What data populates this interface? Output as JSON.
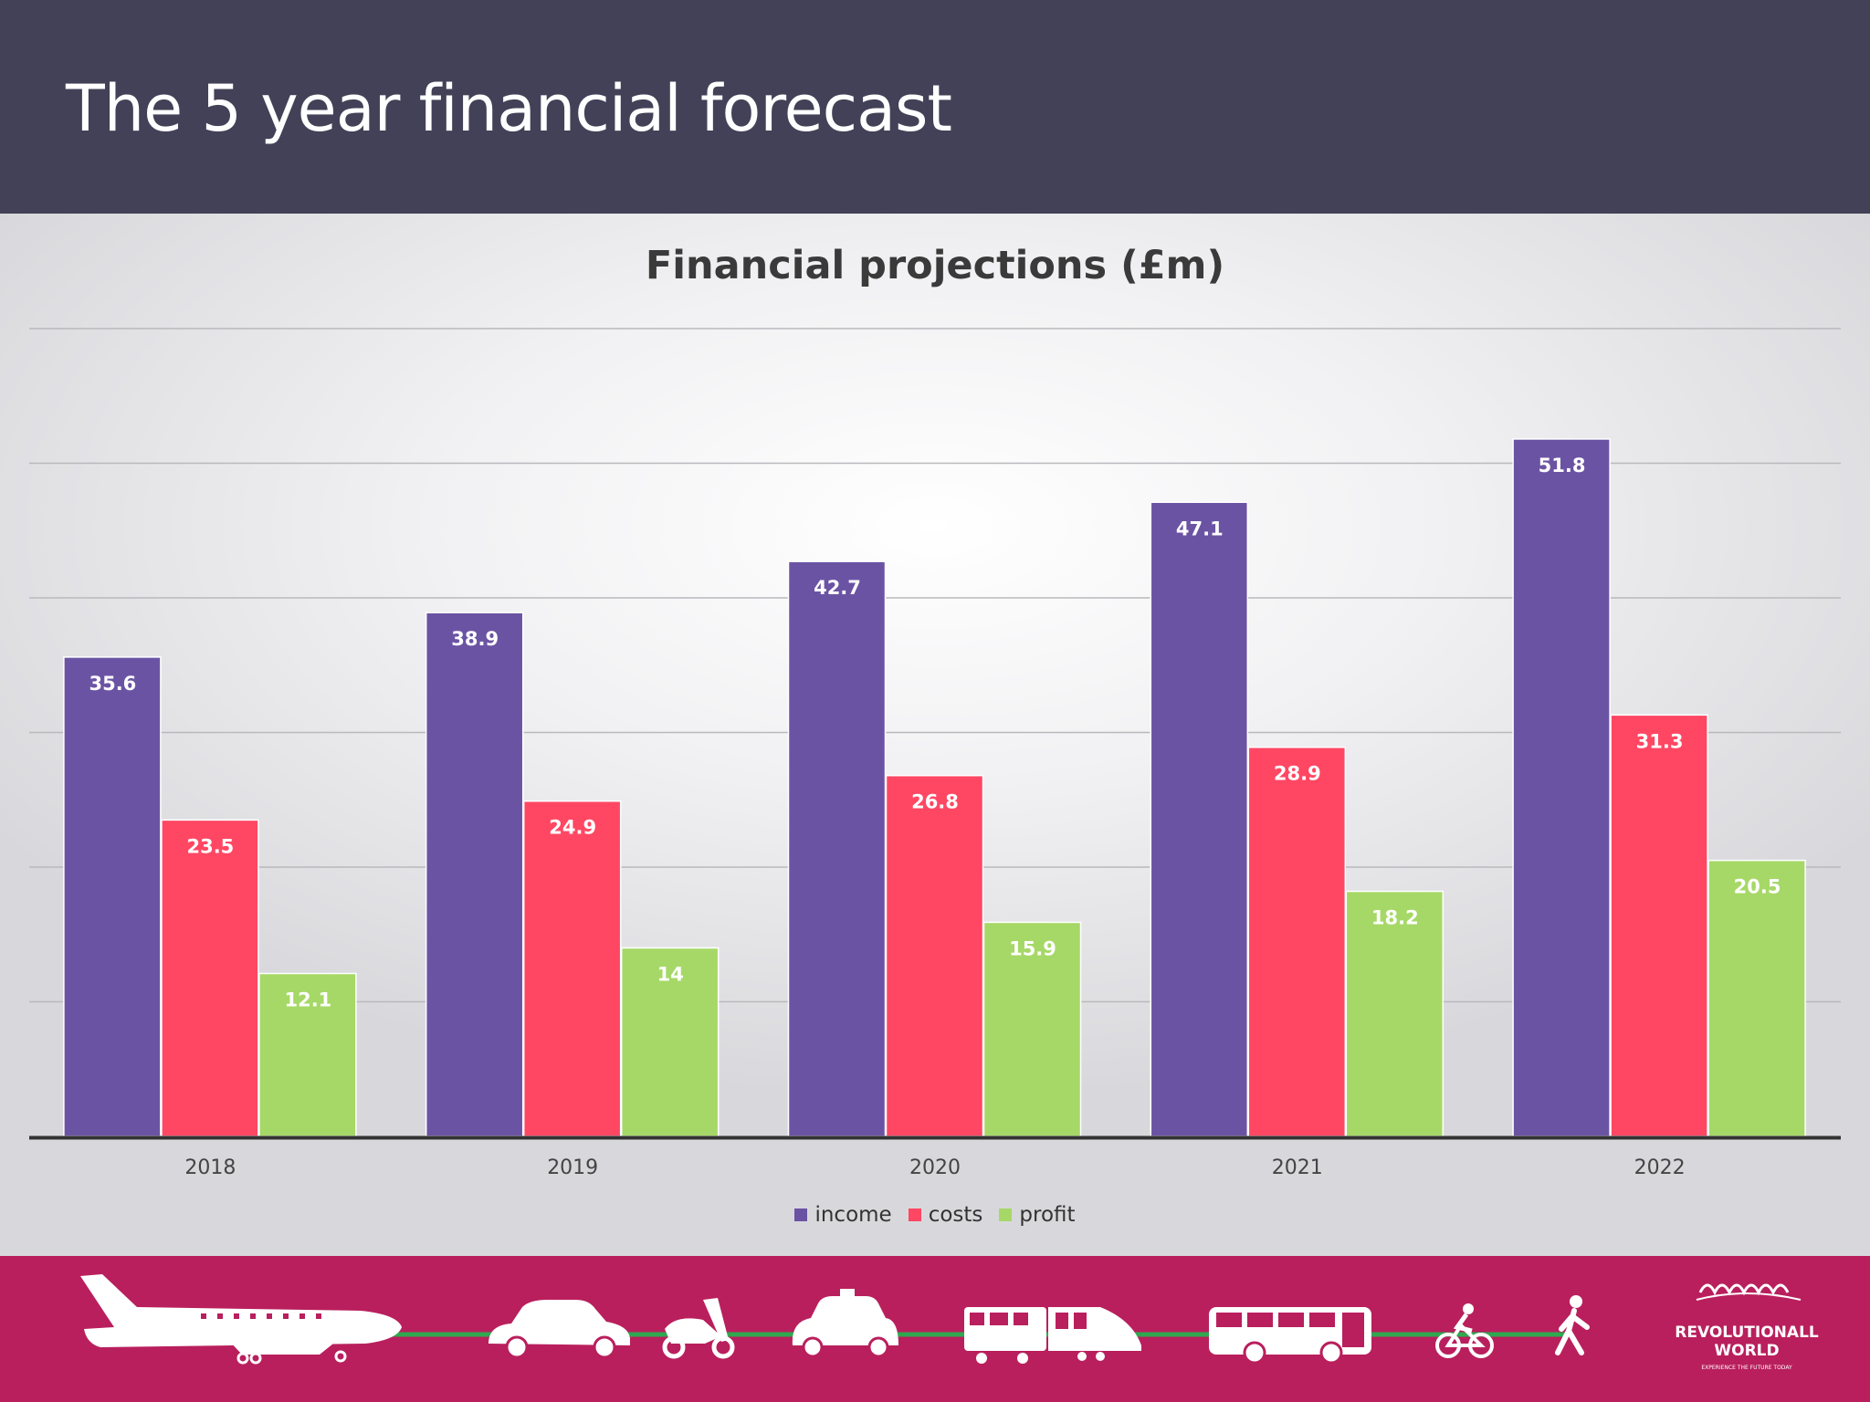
{
  "slide": {
    "title": "The 5 year financial forecast"
  },
  "chart_data": {
    "type": "bar",
    "title": "Financial projections (£m)",
    "categories": [
      "2018",
      "2019",
      "2020",
      "2021",
      "2022"
    ],
    "series": [
      {
        "name": "income",
        "color": "#6b53a4",
        "values": [
          35.6,
          38.9,
          42.7,
          47.1,
          51.8
        ]
      },
      {
        "name": "costs",
        "color": "#ff4763",
        "values": [
          23.5,
          24.9,
          26.8,
          28.9,
          31.3
        ]
      },
      {
        "name": "profit",
        "color": "#a6d867",
        "values": [
          12.1,
          14,
          15.9,
          18.2,
          20.5
        ]
      }
    ],
    "ylim": [
      0,
      60
    ],
    "ytick_step": 10,
    "grid": true,
    "yaxis_labels_visible": false,
    "data_labels": true,
    "legend_position": "bottom"
  },
  "colors": {
    "title_bar": "#424157",
    "footer": "#b91f5d",
    "route_line": "#2fa84f"
  },
  "footer": {
    "icons": [
      "airplane-icon",
      "car-icon",
      "scooter-icon",
      "taxi-icon",
      "train-icon",
      "bus-icon",
      "bicycle-icon",
      "walking-person-icon"
    ],
    "logo": {
      "name": "REVOLUTIONALL",
      "name_line2": "WORLD",
      "tagline": "EXPERIENCE THE FUTURE TODAY"
    }
  }
}
